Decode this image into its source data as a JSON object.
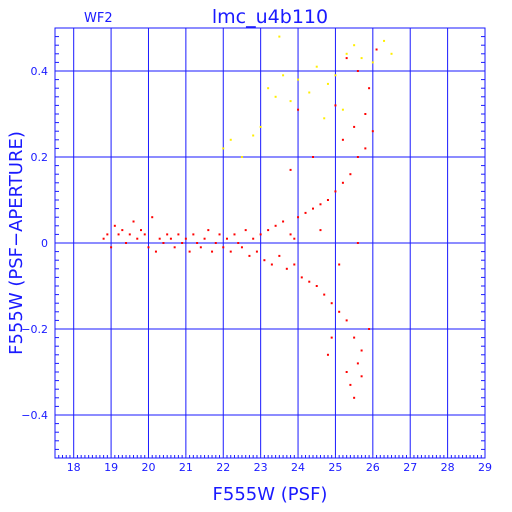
{
  "chart_data": {
    "type": "scatter",
    "title": "lmc_u4b110",
    "chip": "WF2",
    "xlabel": "F555W (PSF)",
    "ylabel": "F555W (PSF−APERTURE)",
    "xlim": [
      17.5,
      29
    ],
    "ylim": [
      -0.5,
      0.5
    ],
    "xticks": [
      18,
      19,
      20,
      21,
      22,
      23,
      24,
      25,
      26,
      27,
      28,
      29
    ],
    "yticks": [
      -0.4,
      -0.2,
      0,
      0.2,
      0.4
    ],
    "ytick_labels": [
      "−0.4",
      "−0.2",
      "0",
      "0.2",
      "0.4"
    ],
    "grid": true,
    "colors": {
      "axis": "#1a1aff",
      "main": "#ff0000",
      "flagged": "#ffee00"
    },
    "series": [
      {
        "color": "#ff0000",
        "points": [
          [
            18.8,
            0.01
          ],
          [
            18.9,
            0.02
          ],
          [
            19.0,
            -0.01
          ],
          [
            19.1,
            0.04
          ],
          [
            19.2,
            0.02
          ],
          [
            19.3,
            0.03
          ],
          [
            19.4,
            0.0
          ],
          [
            19.5,
            0.02
          ],
          [
            19.6,
            0.05
          ],
          [
            19.7,
            0.01
          ],
          [
            19.8,
            0.03
          ],
          [
            19.9,
            0.02
          ],
          [
            20.0,
            -0.01
          ],
          [
            20.1,
            0.06
          ],
          [
            20.2,
            -0.02
          ],
          [
            20.3,
            0.01
          ],
          [
            20.4,
            0.0
          ],
          [
            20.5,
            0.02
          ],
          [
            20.6,
            0.01
          ],
          [
            20.7,
            -0.01
          ],
          [
            20.8,
            0.02
          ],
          [
            20.9,
            0.0
          ],
          [
            21.0,
            0.01
          ],
          [
            21.1,
            -0.02
          ],
          [
            21.2,
            0.02
          ],
          [
            21.3,
            0.0
          ],
          [
            21.4,
            -0.01
          ],
          [
            21.5,
            0.01
          ],
          [
            21.6,
            0.03
          ],
          [
            21.7,
            -0.02
          ],
          [
            21.8,
            0.0
          ],
          [
            21.9,
            0.02
          ],
          [
            22.0,
            -0.01
          ],
          [
            22.1,
            0.01
          ],
          [
            22.2,
            -0.02
          ],
          [
            22.3,
            0.02
          ],
          [
            22.4,
            0.0
          ],
          [
            22.5,
            -0.01
          ],
          [
            22.6,
            0.03
          ],
          [
            22.7,
            -0.03
          ],
          [
            22.8,
            0.01
          ],
          [
            22.9,
            -0.02
          ],
          [
            23.0,
            0.02
          ],
          [
            23.1,
            -0.04
          ],
          [
            23.2,
            0.03
          ],
          [
            23.3,
            -0.05
          ],
          [
            23.4,
            0.04
          ],
          [
            23.5,
            -0.03
          ],
          [
            23.6,
            0.05
          ],
          [
            23.7,
            -0.06
          ],
          [
            23.8,
            0.02
          ],
          [
            23.9,
            -0.05
          ],
          [
            24.0,
            0.06
          ],
          [
            24.1,
            -0.08
          ],
          [
            24.2,
            0.07
          ],
          [
            24.3,
            -0.09
          ],
          [
            24.4,
            0.08
          ],
          [
            24.5,
            -0.1
          ],
          [
            24.6,
            0.09
          ],
          [
            24.7,
            -0.12
          ],
          [
            24.8,
            0.1
          ],
          [
            24.9,
            -0.14
          ],
          [
            25.0,
            0.12
          ],
          [
            25.1,
            -0.16
          ],
          [
            25.2,
            0.14
          ],
          [
            25.3,
            -0.18
          ],
          [
            25.4,
            0.16
          ],
          [
            25.5,
            -0.22
          ],
          [
            25.6,
            0.2
          ],
          [
            25.7,
            -0.25
          ],
          [
            25.8,
            0.22
          ],
          [
            25.9,
            -0.2
          ],
          [
            25.3,
            -0.3
          ],
          [
            25.4,
            -0.33
          ],
          [
            25.5,
            -0.36
          ],
          [
            25.6,
            -0.28
          ],
          [
            25.7,
            -0.31
          ],
          [
            24.8,
            -0.26
          ],
          [
            24.9,
            -0.22
          ],
          [
            25.2,
            0.24
          ],
          [
            25.5,
            0.27
          ],
          [
            25.8,
            0.3
          ],
          [
            26.0,
            0.26
          ],
          [
            24.4,
            0.2
          ],
          [
            23.8,
            0.17
          ],
          [
            24.0,
            0.31
          ],
          [
            25.0,
            0.32
          ],
          [
            25.9,
            0.36
          ],
          [
            26.1,
            0.45
          ],
          [
            25.6,
            0.4
          ],
          [
            25.3,
            0.43
          ],
          [
            25.1,
            -0.05
          ],
          [
            25.6,
            0.0
          ],
          [
            24.6,
            0.03
          ],
          [
            23.9,
            0.01
          ]
        ]
      },
      {
        "color": "#ffee00",
        "points": [
          [
            22.0,
            0.22
          ],
          [
            22.2,
            0.24
          ],
          [
            22.5,
            0.2
          ],
          [
            22.8,
            0.25
          ],
          [
            23.0,
            0.27
          ],
          [
            23.2,
            0.36
          ],
          [
            23.4,
            0.34
          ],
          [
            23.6,
            0.39
          ],
          [
            23.8,
            0.33
          ],
          [
            24.0,
            0.38
          ],
          [
            24.3,
            0.35
          ],
          [
            24.5,
            0.41
          ],
          [
            24.8,
            0.37
          ],
          [
            25.0,
            0.39
          ],
          [
            25.3,
            0.44
          ],
          [
            25.5,
            0.46
          ],
          [
            25.7,
            0.43
          ],
          [
            26.0,
            0.42
          ],
          [
            26.3,
            0.47
          ],
          [
            26.5,
            0.44
          ],
          [
            25.2,
            0.31
          ],
          [
            24.7,
            0.29
          ],
          [
            23.5,
            0.48
          ]
        ]
      }
    ]
  }
}
